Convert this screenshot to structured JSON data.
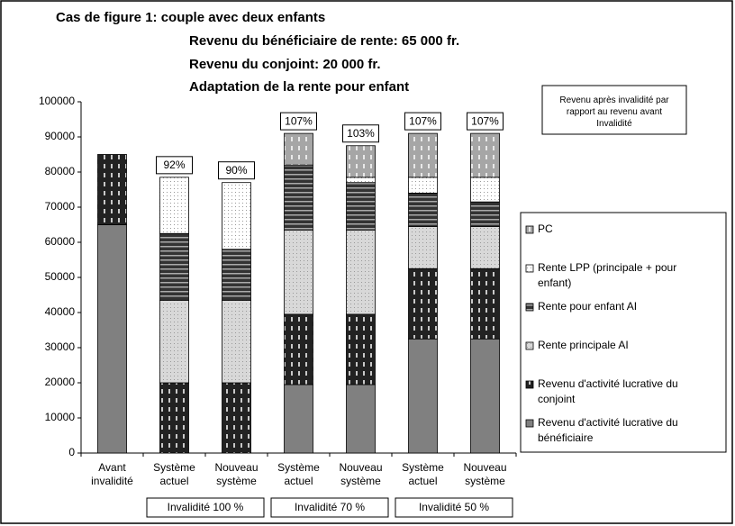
{
  "chart_data": {
    "type": "stacked-bar",
    "title": "Cas de figure 1: couple avec deux enfants",
    "subtitle": [
      "Revenu du bénéficiaire de rente: 65 000 fr.",
      "Revenu du conjoint: 20 000 fr.",
      "Adaptation de la rente pour enfant"
    ],
    "annotation": "Revenu après invalidité par rapport au revenu avant Invalidité",
    "categories": [
      "Avant invalidité",
      "Système actuel",
      "Nouveau système",
      "Système actuel",
      "Nouveau système",
      "Système actuel",
      "Nouveau système"
    ],
    "groups": [
      {
        "label": "Invalidité 100 %",
        "span": [
          1,
          2
        ]
      },
      {
        "label": "Invalidité 70 %",
        "span": [
          3,
          4
        ]
      },
      {
        "label": "Invalidité 50 %",
        "span": [
          5,
          6
        ]
      }
    ],
    "bar_labels": [
      null,
      "92%",
      "90%",
      "107%",
      "103%",
      "107%",
      "107%"
    ],
    "series": [
      {
        "name": "Revenu d'activité lucrative du bénéficiaire",
        "color": "#808080",
        "pattern": "solid",
        "values": [
          65000,
          0,
          0,
          19500,
          19500,
          32500,
          32500
        ]
      },
      {
        "name": "Revenu d'activité lucrative du conjoint",
        "color": "#222222",
        "pattern": "dashes",
        "values": [
          20000,
          20000,
          20000,
          20000,
          20000,
          20000,
          20000
        ]
      },
      {
        "name": "Rente principale AI",
        "color": "#d8d8d8",
        "pattern": "dots",
        "values": [
          0,
          23500,
          23500,
          24000,
          24000,
          12000,
          12000
        ]
      },
      {
        "name": "Rente pour enfant AI",
        "color": "#333333",
        "pattern": "stripes",
        "values": [
          0,
          19000,
          14500,
          18500,
          13500,
          9500,
          7000
        ]
      },
      {
        "name": "Rente LPP (principale + pour enfant)",
        "color": "#ffffff",
        "pattern": "dots",
        "values": [
          0,
          16000,
          19000,
          0,
          1500,
          4500,
          7000
        ]
      },
      {
        "name": "PC",
        "color": "#a6a6a6",
        "pattern": "dashes",
        "values": [
          0,
          0,
          0,
          9000,
          9000,
          12500,
          12500
        ]
      }
    ],
    "ylim": [
      0,
      100000
    ],
    "yticks": [
      0,
      10000,
      20000,
      30000,
      40000,
      50000,
      60000,
      70000,
      80000,
      90000,
      100000
    ],
    "legend": "right"
  }
}
